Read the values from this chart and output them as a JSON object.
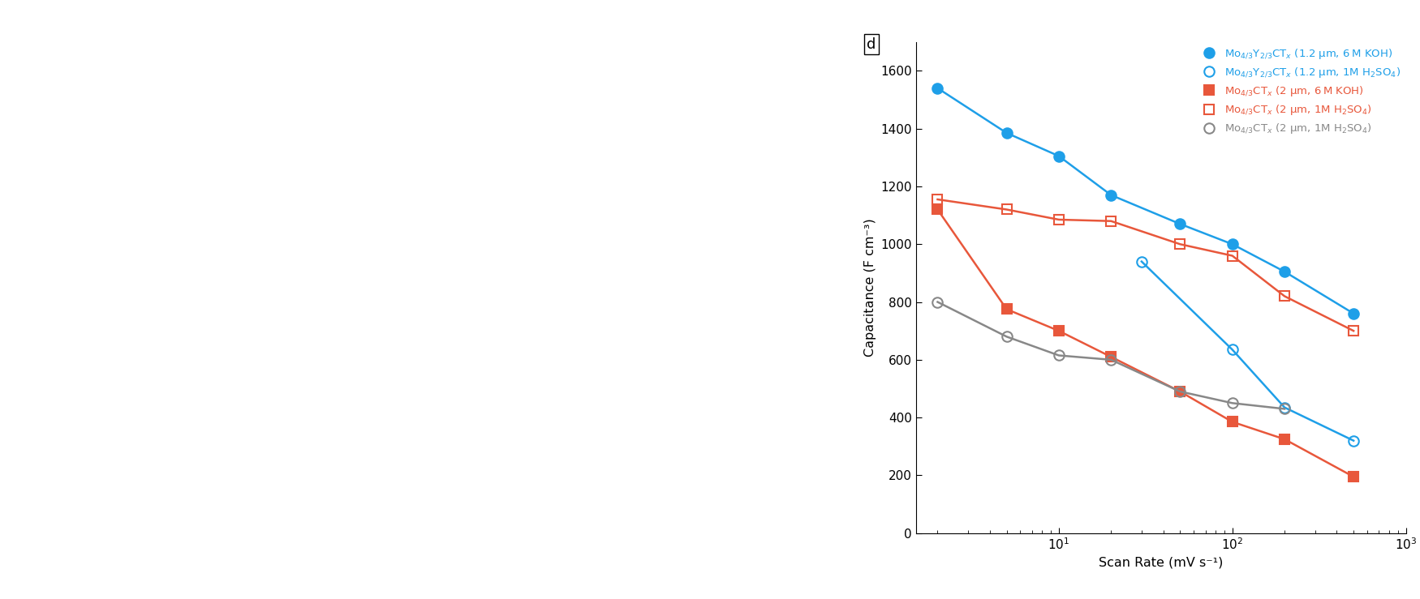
{
  "xlabel": "Scan Rate (mV s⁻¹)",
  "ylabel": "Capacitance (F cm⁻³)",
  "ylim": [
    0,
    1700
  ],
  "xlim": [
    1.5,
    1000
  ],
  "yticks": [
    0,
    200,
    400,
    600,
    800,
    1000,
    1200,
    1400,
    1600
  ],
  "panel_label": "d",
  "fig_width": 17.5,
  "fig_height": 7.39,
  "series": [
    {
      "label": "Mo$_{4/3}$Y$_{2/3}$CT$_x$ (1.2 μm, 6 M KOH)",
      "x": [
        2,
        5,
        10,
        20,
        50,
        100,
        200,
        500
      ],
      "y": [
        1540,
        1385,
        1305,
        1170,
        1070,
        1000,
        905,
        760
      ],
      "color": "#1E9FE8",
      "marker": "o",
      "filled": true,
      "markersize": 9,
      "lw": 1.8
    },
    {
      "label": "Mo$_{4/3}$Y$_{2/3}$CT$_x$ (1.2 μm, 1M H$_2$SO$_4$)",
      "x": [
        30,
        100,
        200,
        500
      ],
      "y": [
        940,
        635,
        435,
        320
      ],
      "color": "#1E9FE8",
      "marker": "o",
      "filled": false,
      "markersize": 9,
      "lw": 1.8
    },
    {
      "label": "Mo$_{4/3}$CT$_x$ (2 μm, 6 M KOH)",
      "x": [
        2,
        5,
        10,
        20,
        50,
        100,
        200,
        500
      ],
      "y": [
        1120,
        775,
        700,
        610,
        490,
        385,
        325,
        195
      ],
      "color": "#E8573B",
      "marker": "s",
      "filled": true,
      "markersize": 8,
      "lw": 1.8
    },
    {
      "label": "Mo$_{4/3}$CT$_x$ (2 μm, 1M H$_2$SO$_4$)",
      "x": [
        2,
        5,
        10,
        20,
        50,
        100,
        200,
        500
      ],
      "y": [
        1155,
        1120,
        1085,
        1080,
        1000,
        960,
        820,
        700
      ],
      "color": "#E8573B",
      "marker": "s",
      "filled": false,
      "markersize": 8,
      "lw": 1.8
    },
    {
      "label": "Mo$_{4/3}$CT$_x$ (2 μm, 1M H$_2$SO$_4$)_gray",
      "x": [
        2,
        5,
        10,
        20,
        50,
        100,
        200
      ],
      "y": [
        800,
        680,
        615,
        600,
        490,
        450,
        430
      ],
      "color": "#888888",
      "marker": "o",
      "filled": false,
      "markersize": 9,
      "lw": 1.8
    }
  ],
  "legend": [
    {
      "label": "Mo$_{4/3}$Y$_{2/3}$CT$_x$ (1.2 μm, 6 M KOH)",
      "color": "#1E9FE8",
      "marker": "o",
      "filled": true
    },
    {
      "label": "Mo$_{4/3}$Y$_{2/3}$CT$_x$ (1.2 μm, 1M H$_2$SO$_4$)",
      "color": "#1E9FE8",
      "marker": "o",
      "filled": false
    },
    {
      "label": "Mo$_{4/3}$CT$_x$ (2 μm, 6 M KOH)",
      "color": "#E8573B",
      "marker": "s",
      "filled": true
    },
    {
      "label": "Mo$_{4/3}$CT$_x$ (2 μm, 1M H$_2$SO$_4$)",
      "color": "#E8573B",
      "marker": "s",
      "filled": false
    },
    {
      "label": "Mo$_{4/3}$CT$_x$ (2 μm, 1M H$_2$SO$_4$)",
      "color": "#888888",
      "marker": "o",
      "filled": false
    }
  ]
}
